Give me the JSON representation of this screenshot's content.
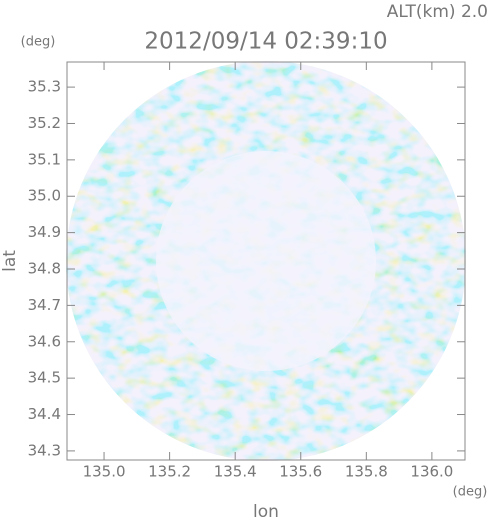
{
  "chart_data": {
    "type": "radar-map",
    "title": "2012/09/14 02:39:10",
    "subtitle": "ALT(km) 2.0",
    "x_label": "lon",
    "y_label": "lat",
    "x_unit": "(deg)",
    "y_unit": "(deg)",
    "xlim": [
      134.887,
      136.101
    ],
    "ylim": [
      34.275,
      35.369
    ],
    "xticks": [
      {
        "value": 135,
        "label": "135.0"
      },
      135.2,
      135.4,
      135.6,
      135.8,
      {
        "value": 136,
        "label": "136.0"
      }
    ],
    "yticks": [
      34.3,
      34.4,
      34.5,
      34.6,
      34.7,
      34.8,
      34.9,
      {
        "value": 35,
        "label": "35.0"
      },
      35.1,
      35.2,
      35.3
    ]
  }
}
